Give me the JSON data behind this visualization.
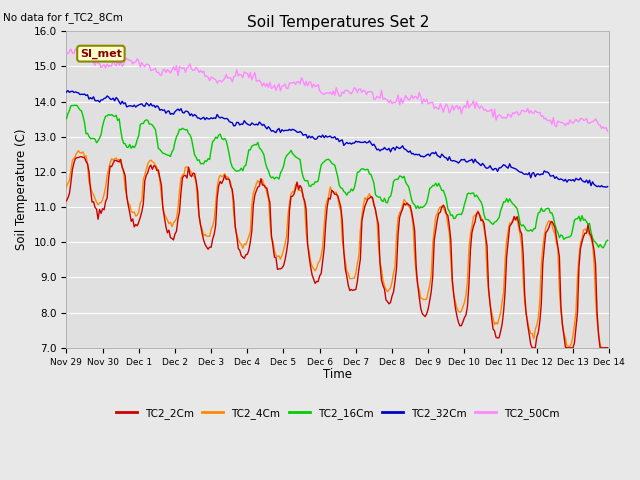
{
  "title": "Soil Temperatures Set 2",
  "top_left_note": "No data for f_TC2_8Cm",
  "ylabel": "Soil Temperature (C)",
  "xlabel": "Time",
  "ylim": [
    7.0,
    16.0
  ],
  "yticks": [
    7.0,
    8.0,
    9.0,
    10.0,
    11.0,
    12.0,
    13.0,
    14.0,
    15.0,
    16.0
  ],
  "background_color": "#e8e8e8",
  "plot_bg_color": "#e0e0e0",
  "grid_color": "#ffffff",
  "series": {
    "TC2_2Cm": {
      "color": "#cc0000",
      "lw": 1.0
    },
    "TC2_4Cm": {
      "color": "#ff8800",
      "lw": 1.0
    },
    "TC2_16Cm": {
      "color": "#00cc00",
      "lw": 1.0
    },
    "TC2_32Cm": {
      "color": "#0000cc",
      "lw": 1.0
    },
    "TC2_50Cm": {
      "color": "#ff88ff",
      "lw": 1.0
    }
  },
  "legend_box": {
    "text": "SI_met",
    "bg": "#ffffcc",
    "border": "#888800"
  },
  "xtick_labels": [
    "Nov 29",
    "Nov 30",
    "Dec 1",
    "Dec 2",
    "Dec 3",
    "Dec 4",
    "Dec 5",
    "Dec 6",
    "Dec 7",
    "Dec 8",
    "Dec 9",
    "Dec 10",
    "Dec 11",
    "Dec 12",
    "Dec 13",
    "Dec 14"
  ]
}
